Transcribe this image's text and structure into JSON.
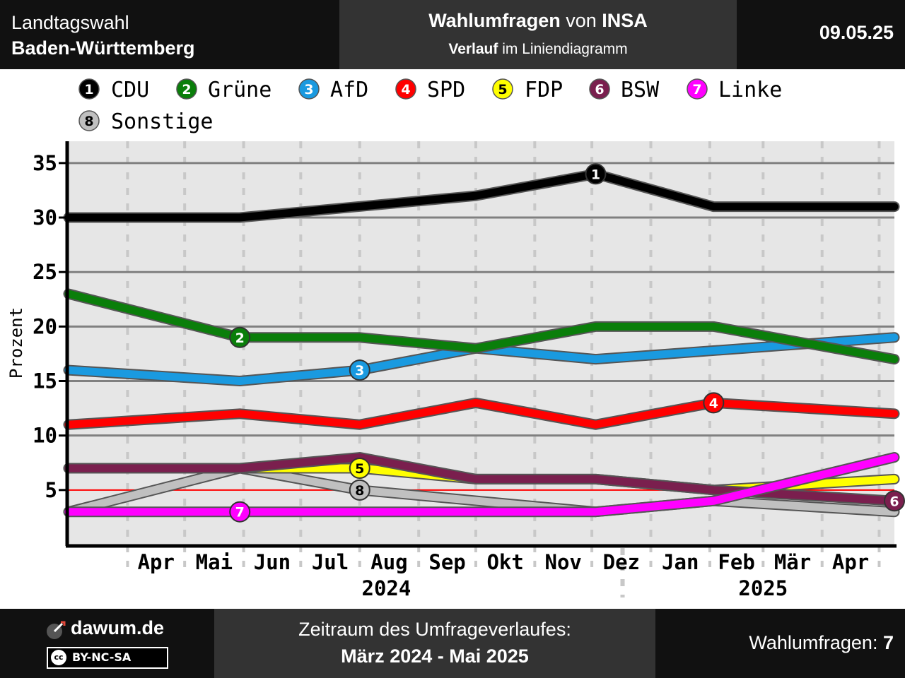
{
  "header": {
    "election_line1": "Landtagswahl",
    "election_line2": "Baden-Württemberg",
    "title_bold1": "Wahlumfragen",
    "title_mid": " von ",
    "title_bold2": "INSA",
    "subtitle_bold": "Verlauf",
    "subtitle_rest": " im Liniendiagramm",
    "date": "09.05.25"
  },
  "footer": {
    "brand": "dawum.de",
    "license": "BY-NC-SA",
    "license_logo": "cc",
    "period_label": "Zeitraum des Umfrageverlaufes:",
    "period_value": "März 2024 - Mai 2025",
    "polls_label": "Wahlumfragen: ",
    "polls_count": "7"
  },
  "colors": {
    "plot_background": "#e6e6e6",
    "threshold_line": "#ff0000",
    "header_background": "#111111",
    "header_mid_background": "#333333"
  },
  "chart_data": {
    "type": "line",
    "ylabel": "Prozent",
    "ylim": [
      0,
      37
    ],
    "yticks": [
      5,
      10,
      15,
      20,
      25,
      30,
      35
    ],
    "threshold": 5,
    "x_months": [
      "Apr",
      "Mai",
      "Jun",
      "Jul",
      "Aug",
      "Sep",
      "Okt",
      "Nov",
      "Dez",
      "Jan",
      "Feb",
      "Mär",
      "Apr"
    ],
    "x_years": [
      "2024",
      "2025"
    ],
    "x_range": [
      "2024-03-01",
      "2025-05-09"
    ],
    "grid": true,
    "legend_position": "top",
    "series": [
      {
        "num": "1",
        "name": "CDU",
        "color": "#000000",
        "marker_text": "#ffffff",
        "x": [
          "2024-03-01",
          "2024-05-30",
          "2024-10-01",
          "2024-12-03",
          "2025-02-03",
          "2025-05-09"
        ],
        "values": [
          30,
          30,
          32,
          34,
          31,
          31
        ],
        "marker_x": "2024-12-03"
      },
      {
        "num": "2",
        "name": "Grüne",
        "color": "#0a7e0a",
        "marker_text": "#ffffff",
        "x": [
          "2024-03-01",
          "2024-05-30",
          "2024-08-01",
          "2024-10-01",
          "2024-12-03",
          "2025-02-03",
          "2025-05-09"
        ],
        "values": [
          23,
          19,
          19,
          18,
          20,
          20,
          17
        ],
        "marker_x": "2024-05-30"
      },
      {
        "num": "3",
        "name": "AfD",
        "color": "#1a9ae0",
        "marker_text": "#ffffff",
        "x": [
          "2024-03-01",
          "2024-05-30",
          "2024-08-01",
          "2024-10-01",
          "2024-12-03",
          "2025-05-09"
        ],
        "values": [
          16,
          15,
          16,
          18,
          17,
          19
        ],
        "marker_x": "2024-08-01"
      },
      {
        "num": "4",
        "name": "SPD",
        "color": "#ff0000",
        "marker_text": "#ffffff",
        "x": [
          "2024-03-01",
          "2024-05-30",
          "2024-08-01",
          "2024-10-01",
          "2024-12-03",
          "2025-02-03",
          "2025-05-09"
        ],
        "values": [
          11,
          12,
          11,
          13,
          11,
          13,
          12
        ],
        "marker_x": "2025-02-03"
      },
      {
        "num": "5",
        "name": "FDP",
        "color": "#ffff00",
        "marker_text": "#000000",
        "x": [
          "2024-03-01",
          "2024-05-30",
          "2024-08-01",
          "2024-10-01",
          "2024-12-03",
          "2025-02-03",
          "2025-05-09"
        ],
        "values": [
          7,
          7,
          7,
          6,
          6,
          5,
          6
        ],
        "marker_x": "2024-08-01"
      },
      {
        "num": "6",
        "name": "BSW",
        "color": "#7a1f4e",
        "marker_text": "#ffffff",
        "x": [
          "2024-03-01",
          "2024-05-30",
          "2024-08-01",
          "2024-10-01",
          "2024-12-03",
          "2025-02-03",
          "2025-05-09"
        ],
        "values": [
          7,
          7,
          8,
          6,
          6,
          5,
          4
        ],
        "marker_x": "2025-05-09"
      },
      {
        "num": "7",
        "name": "Linke",
        "color": "#ff00ff",
        "marker_text": "#ffffff",
        "x": [
          "2024-03-01",
          "2024-05-30",
          "2024-08-01",
          "2024-10-01",
          "2024-12-03",
          "2025-02-03",
          "2025-05-09"
        ],
        "values": [
          3,
          3,
          3,
          3,
          3,
          4,
          8
        ],
        "marker_x": "2024-05-30"
      },
      {
        "num": "8",
        "name": "Sonstige",
        "color": "#c0c0c0",
        "marker_text": "#000000",
        "x": [
          "2024-03-01",
          "2024-05-30",
          "2024-08-01",
          "2024-12-03",
          "2025-02-03",
          "2025-05-09"
        ],
        "values": [
          3,
          7,
          5,
          3,
          4,
          3
        ],
        "marker_x": "2024-08-01"
      }
    ]
  }
}
